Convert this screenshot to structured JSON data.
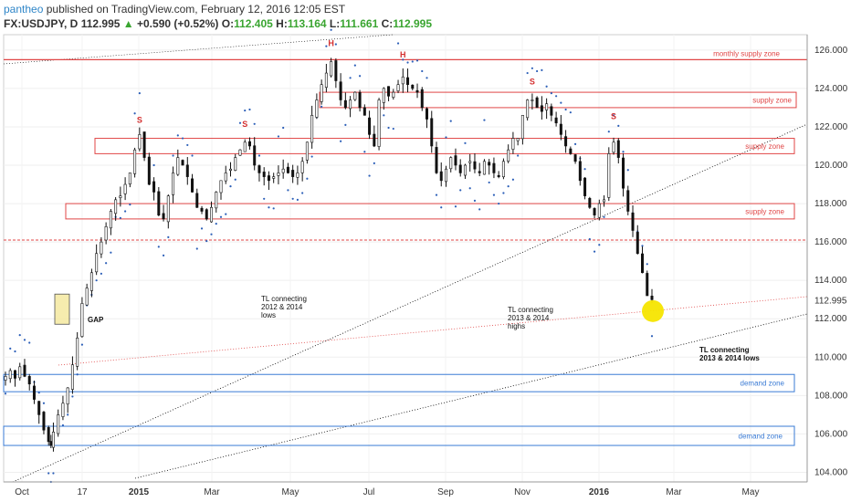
{
  "header": {
    "author": "pantheo",
    "published": "published on TradingView.com, February 12, 2016 12:05 EST",
    "symbol": "FX:USDJPY, D",
    "last": "112.995",
    "change": "+0.590 (+0.52%)",
    "open_label": "O:",
    "open": "112.405",
    "high_label": "H:",
    "high": "113.164",
    "low_label": "L:",
    "low": "111.661",
    "close_label": "C:",
    "close": "112.995"
  },
  "colors": {
    "supply": "#e04646",
    "demand": "#3a7bd5",
    "candle": "#111111",
    "candle_up": "#3aa531",
    "sar": "#2c5fb8",
    "highlight": "#f5e500"
  },
  "chart_data": {
    "type": "candlestick",
    "symbol": "FX:USDJPY",
    "timeframe": "D",
    "ylim": [
      103.5,
      126.8
    ],
    "yticks": [
      104,
      106,
      108,
      110,
      112,
      114,
      116,
      118,
      120,
      122,
      124,
      126
    ],
    "ytick_labels": [
      "104.000",
      "106.000",
      "108.000",
      "110.000",
      "112.000",
      "114.000",
      "116.000",
      "118.000",
      "120.000",
      "122.000",
      "124.000",
      "126.000"
    ],
    "last_price_label": "112.995",
    "x_labels": [
      "Oct",
      "17",
      "2015",
      "Mar",
      "May",
      "Jul",
      "Sep",
      "Nov",
      "2016",
      "Mar",
      "May"
    ],
    "x_label_bold": [
      false,
      false,
      true,
      false,
      false,
      false,
      false,
      false,
      true,
      false,
      false
    ],
    "price_path": [
      [
        0,
        109.0
      ],
      [
        2,
        109.3
      ],
      [
        4,
        108.9
      ],
      [
        6,
        109.5
      ],
      [
        8,
        109.0
      ],
      [
        10,
        108.6
      ],
      [
        12,
        107.8
      ],
      [
        14,
        107.0
      ],
      [
        16,
        106.2
      ],
      [
        18,
        105.6
      ],
      [
        19,
        105.4
      ],
      [
        20,
        106.1
      ],
      [
        22,
        107.0
      ],
      [
        24,
        107.6
      ],
      [
        26,
        108.4
      ],
      [
        28,
        109.6
      ],
      [
        30,
        111.0
      ],
      [
        32,
        112.8
      ],
      [
        34,
        113.6
      ],
      [
        36,
        114.4
      ],
      [
        38,
        115.4
      ],
      [
        40,
        116.0
      ],
      [
        42,
        116.8
      ],
      [
        44,
        117.6
      ],
      [
        46,
        118.2
      ],
      [
        48,
        118.4
      ],
      [
        50,
        119.0
      ],
      [
        52,
        119.6
      ],
      [
        54,
        120.8
      ],
      [
        56,
        121.6
      ],
      [
        58,
        120.4
      ],
      [
        60,
        119.0
      ],
      [
        62,
        118.6
      ],
      [
        64,
        117.4
      ],
      [
        66,
        117.2
      ],
      [
        68,
        118.4
      ],
      [
        70,
        119.6
      ],
      [
        72,
        120.4
      ],
      [
        74,
        120.0
      ],
      [
        76,
        119.4
      ],
      [
        78,
        118.6
      ],
      [
        80,
        117.8
      ],
      [
        82,
        117.6
      ],
      [
        84,
        117.2
      ],
      [
        86,
        117.8
      ],
      [
        88,
        118.6
      ],
      [
        90,
        119.2
      ],
      [
        92,
        119.6
      ],
      [
        94,
        119.8
      ],
      [
        96,
        120.4
      ],
      [
        98,
        120.8
      ],
      [
        100,
        121.2
      ],
      [
        102,
        121.0
      ],
      [
        104,
        120.0
      ],
      [
        106,
        119.6
      ],
      [
        108,
        119.4
      ],
      [
        110,
        119.2
      ],
      [
        112,
        119.4
      ],
      [
        114,
        119.6
      ],
      [
        116,
        119.8
      ],
      [
        118,
        119.6
      ],
      [
        120,
        119.4
      ],
      [
        122,
        119.6
      ],
      [
        124,
        120.2
      ],
      [
        126,
        121.2
      ],
      [
        128,
        122.6
      ],
      [
        130,
        123.4
      ],
      [
        132,
        124.2
      ],
      [
        134,
        124.8
      ],
      [
        136,
        125.4
      ],
      [
        138,
        124.4
      ],
      [
        140,
        123.4
      ],
      [
        142,
        123.0
      ],
      [
        144,
        123.4
      ],
      [
        146,
        123.8
      ],
      [
        148,
        123.0
      ],
      [
        150,
        122.6
      ],
      [
        152,
        121.6
      ],
      [
        154,
        121.0
      ],
      [
        156,
        123.4
      ],
      [
        158,
        124.0
      ],
      [
        160,
        123.6
      ],
      [
        162,
        123.8
      ],
      [
        164,
        124.2
      ],
      [
        166,
        124.6
      ],
      [
        168,
        124.2
      ],
      [
        170,
        124.0
      ],
      [
        172,
        123.8
      ],
      [
        174,
        123.0
      ],
      [
        176,
        122.4
      ],
      [
        178,
        121.0
      ],
      [
        180,
        119.6
      ],
      [
        182,
        119.2
      ],
      [
        184,
        119.8
      ],
      [
        186,
        120.4
      ],
      [
        188,
        120.0
      ],
      [
        190,
        119.6
      ],
      [
        192,
        120.0
      ],
      [
        194,
        120.2
      ],
      [
        196,
        119.8
      ],
      [
        198,
        119.6
      ],
      [
        200,
        120.2
      ],
      [
        202,
        120.0
      ],
      [
        204,
        119.6
      ],
      [
        206,
        119.4
      ],
      [
        208,
        120.2
      ],
      [
        210,
        120.8
      ],
      [
        212,
        121.4
      ],
      [
        214,
        121.4
      ],
      [
        216,
        122.6
      ],
      [
        218,
        123.4
      ],
      [
        220,
        123.4
      ],
      [
        222,
        123.0
      ],
      [
        224,
        122.8
      ],
      [
        226,
        123.2
      ],
      [
        228,
        122.6
      ],
      [
        230,
        122.2
      ],
      [
        232,
        121.6
      ],
      [
        234,
        121.0
      ],
      [
        236,
        120.6
      ],
      [
        238,
        120.2
      ],
      [
        240,
        119.2
      ],
      [
        242,
        118.4
      ],
      [
        244,
        117.8
      ],
      [
        246,
        117.4
      ],
      [
        248,
        118.0
      ],
      [
        250,
        118.2
      ],
      [
        252,
        120.6
      ],
      [
        254,
        121.2
      ],
      [
        256,
        120.4
      ],
      [
        258,
        118.8
      ],
      [
        260,
        117.6
      ],
      [
        262,
        116.6
      ],
      [
        264,
        115.4
      ],
      [
        266,
        114.4
      ],
      [
        268,
        113.2
      ],
      [
        270,
        112.995
      ]
    ],
    "zones": [
      {
        "label": "monthly supply zone",
        "kind": "supply",
        "y1": 125.5,
        "y2": 125.5
      },
      {
        "label": "supply zone",
        "kind": "supply",
        "y1": 123.0,
        "y2": 123.8
      },
      {
        "label": "supply zone",
        "kind": "supply",
        "y1": 120.6,
        "y2": 121.4
      },
      {
        "label": "supply zone",
        "kind": "supply",
        "y1": 117.2,
        "y2": 118.0
      },
      {
        "label": "demand zone",
        "kind": "demand",
        "y1": 108.2,
        "y2": 109.1
      },
      {
        "label": "demand zone",
        "kind": "demand",
        "y1": 105.4,
        "y2": 106.4
      }
    ],
    "support_level": 116.1,
    "gap_box": {
      "x_from": 112.0,
      "x_to": 113.0
    },
    "patterns": [
      {
        "label": "S",
        "x": 56,
        "y": 122.2
      },
      {
        "label": "S",
        "x": 100,
        "y": 122.0
      },
      {
        "label": "H",
        "x": 136,
        "y": 126.2
      },
      {
        "label": "H",
        "x": 166,
        "y": 125.6
      },
      {
        "label": "S",
        "x": 220,
        "y": 124.2
      },
      {
        "label": "S",
        "x": 254,
        "y": 122.4
      }
    ],
    "annotations": [
      {
        "lines": [
          "GAP"
        ],
        "bold": true
      },
      {
        "lines": [
          "TL connecting",
          "2012 & 2014",
          "lows"
        ],
        "bold": false
      },
      {
        "lines": [
          "TL connecting",
          "2013 & 2014",
          "highs"
        ],
        "bold": false
      },
      {
        "lines": [
          "TL connecting",
          "2013 & 2014 lows"
        ],
        "bold": true
      }
    ]
  }
}
